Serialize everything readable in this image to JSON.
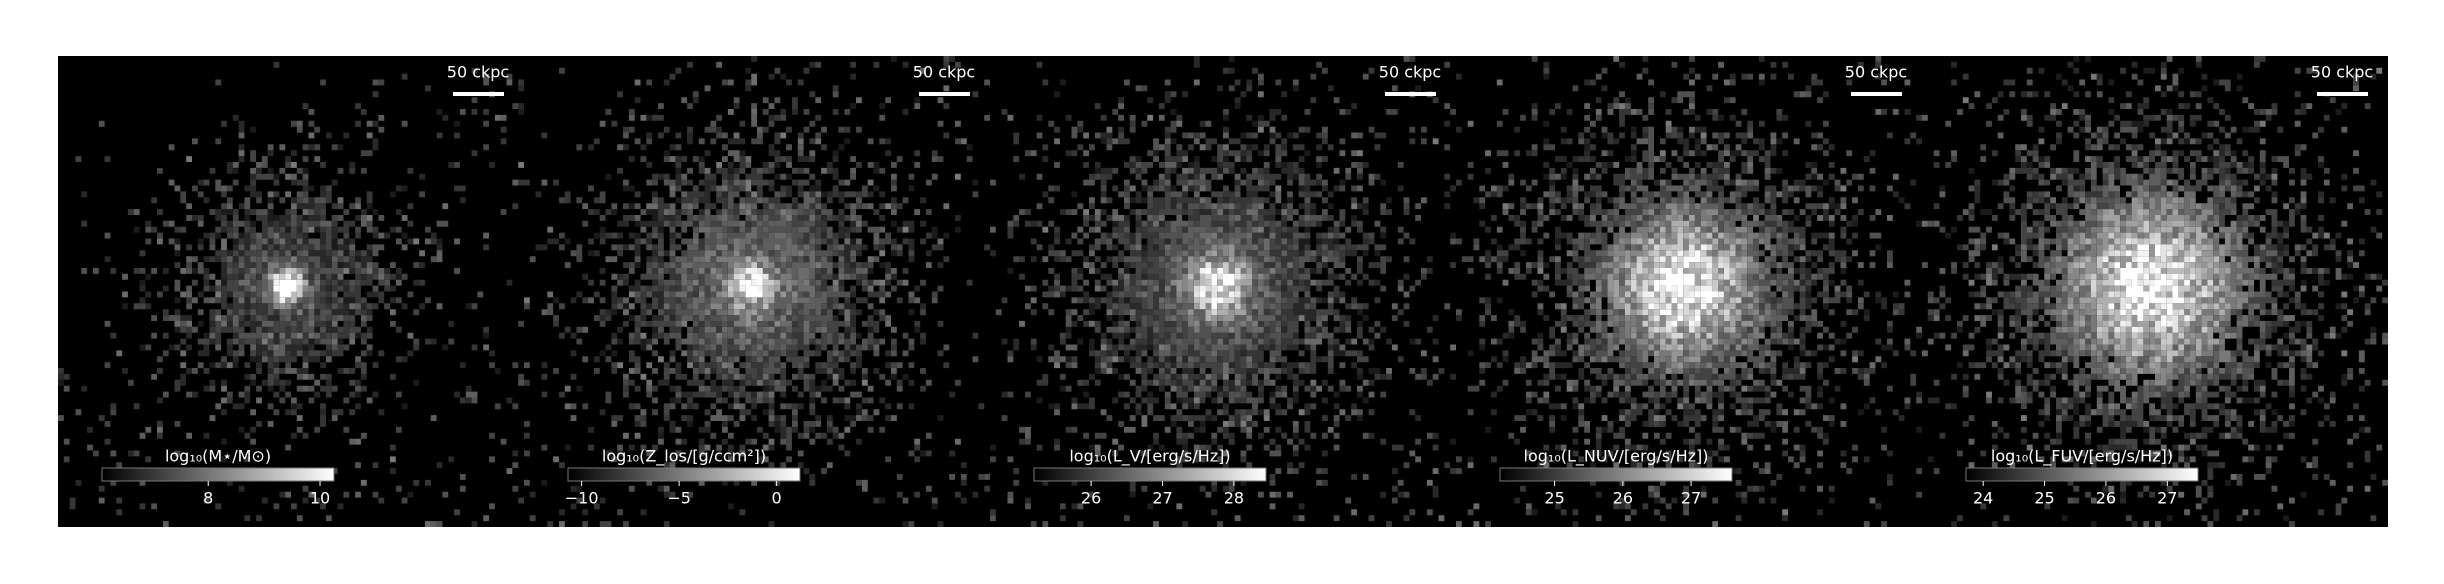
{
  "chart_data": [
    {
      "type": "image",
      "scale_bar_label": "50 ckpc",
      "colorbar_label": "log₁₀(M⋆/M⊙)",
      "colorbar_lim": [
        6.1,
        10.25
      ],
      "colorbar_ticks": [
        8,
        10
      ]
    },
    {
      "type": "image",
      "scale_bar_label": "50 ckpc",
      "colorbar_label": "log₁₀(Z_los/[g/ccm²])",
      "colorbar_lim": [
        -10.7,
        1.2
      ],
      "colorbar_ticks": [
        {
          "value": -10,
          "label": "−10"
        },
        {
          "value": -5,
          "label": "−5"
        },
        0
      ]
    },
    {
      "type": "image",
      "scale_bar_label": "50 ckpc",
      "colorbar_label": "log₁₀(L_V/[erg/s/Hz])",
      "colorbar_lim": [
        25.2,
        28.45
      ],
      "colorbar_ticks": [
        26,
        27,
        28
      ]
    },
    {
      "type": "image",
      "scale_bar_label": "50 ckpc",
      "colorbar_label": "log₁₀(L_NUV/[erg/s/Hz])",
      "colorbar_lim": [
        24.2,
        27.6
      ],
      "colorbar_ticks": [
        25,
        26,
        27
      ]
    },
    {
      "type": "image",
      "scale_bar_label": "50 ckpc",
      "colorbar_label": "log₁₀(L_FUV/[erg/s/Hz])",
      "colorbar_lim": [
        23.72,
        27.5
      ],
      "colorbar_ticks": [
        24,
        25,
        26,
        27
      ]
    }
  ]
}
